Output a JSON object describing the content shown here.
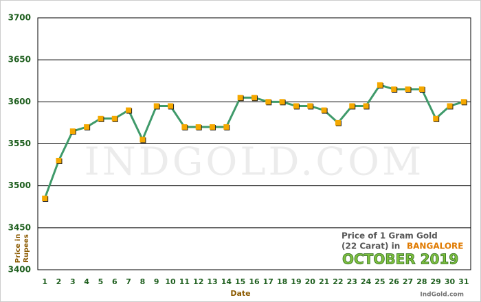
{
  "chart_data": {
    "type": "line",
    "y_label": [
      "Price in",
      "Rupees"
    ],
    "x_label": "Date",
    "watermark": "IndGold.com",
    "footer": "IndGold.com",
    "legend_lines": [
      "Price of 1 Gram Gold",
      "(22 Carat) in"
    ],
    "city": "BANGALORE",
    "month": "OCTOBER 2019",
    "x": [
      1,
      2,
      3,
      4,
      5,
      6,
      7,
      8,
      9,
      10,
      11,
      12,
      13,
      14,
      15,
      16,
      17,
      18,
      19,
      20,
      21,
      22,
      23,
      24,
      25,
      26,
      27,
      28,
      29,
      30,
      31
    ],
    "series": [
      {
        "color": "#3f9a6a",
        "marker_color": "#f5a800",
        "values": [
          3485,
          3530,
          3565,
          3570,
          3580,
          3580,
          3590,
          3555,
          3595,
          3595,
          3570,
          3570,
          3570,
          3570,
          3605,
          3605,
          3600,
          3600,
          3595,
          3595,
          3590,
          3575,
          3595,
          3595,
          3620,
          3615,
          3615,
          3615,
          3580,
          3595,
          3600
        ]
      }
    ],
    "xlim": [
      0.5,
      31.5
    ],
    "xticks": [
      1,
      2,
      3,
      4,
      5,
      6,
      7,
      8,
      9,
      10,
      11,
      12,
      13,
      14,
      15,
      16,
      17,
      18,
      19,
      20,
      21,
      22,
      23,
      24,
      25,
      26,
      27,
      28,
      29,
      30,
      31
    ],
    "ylim": [
      3400,
      3700
    ],
    "yticks": [
      3400,
      3450,
      3500,
      3550,
      3600,
      3650,
      3700
    ],
    "grid": true
  }
}
